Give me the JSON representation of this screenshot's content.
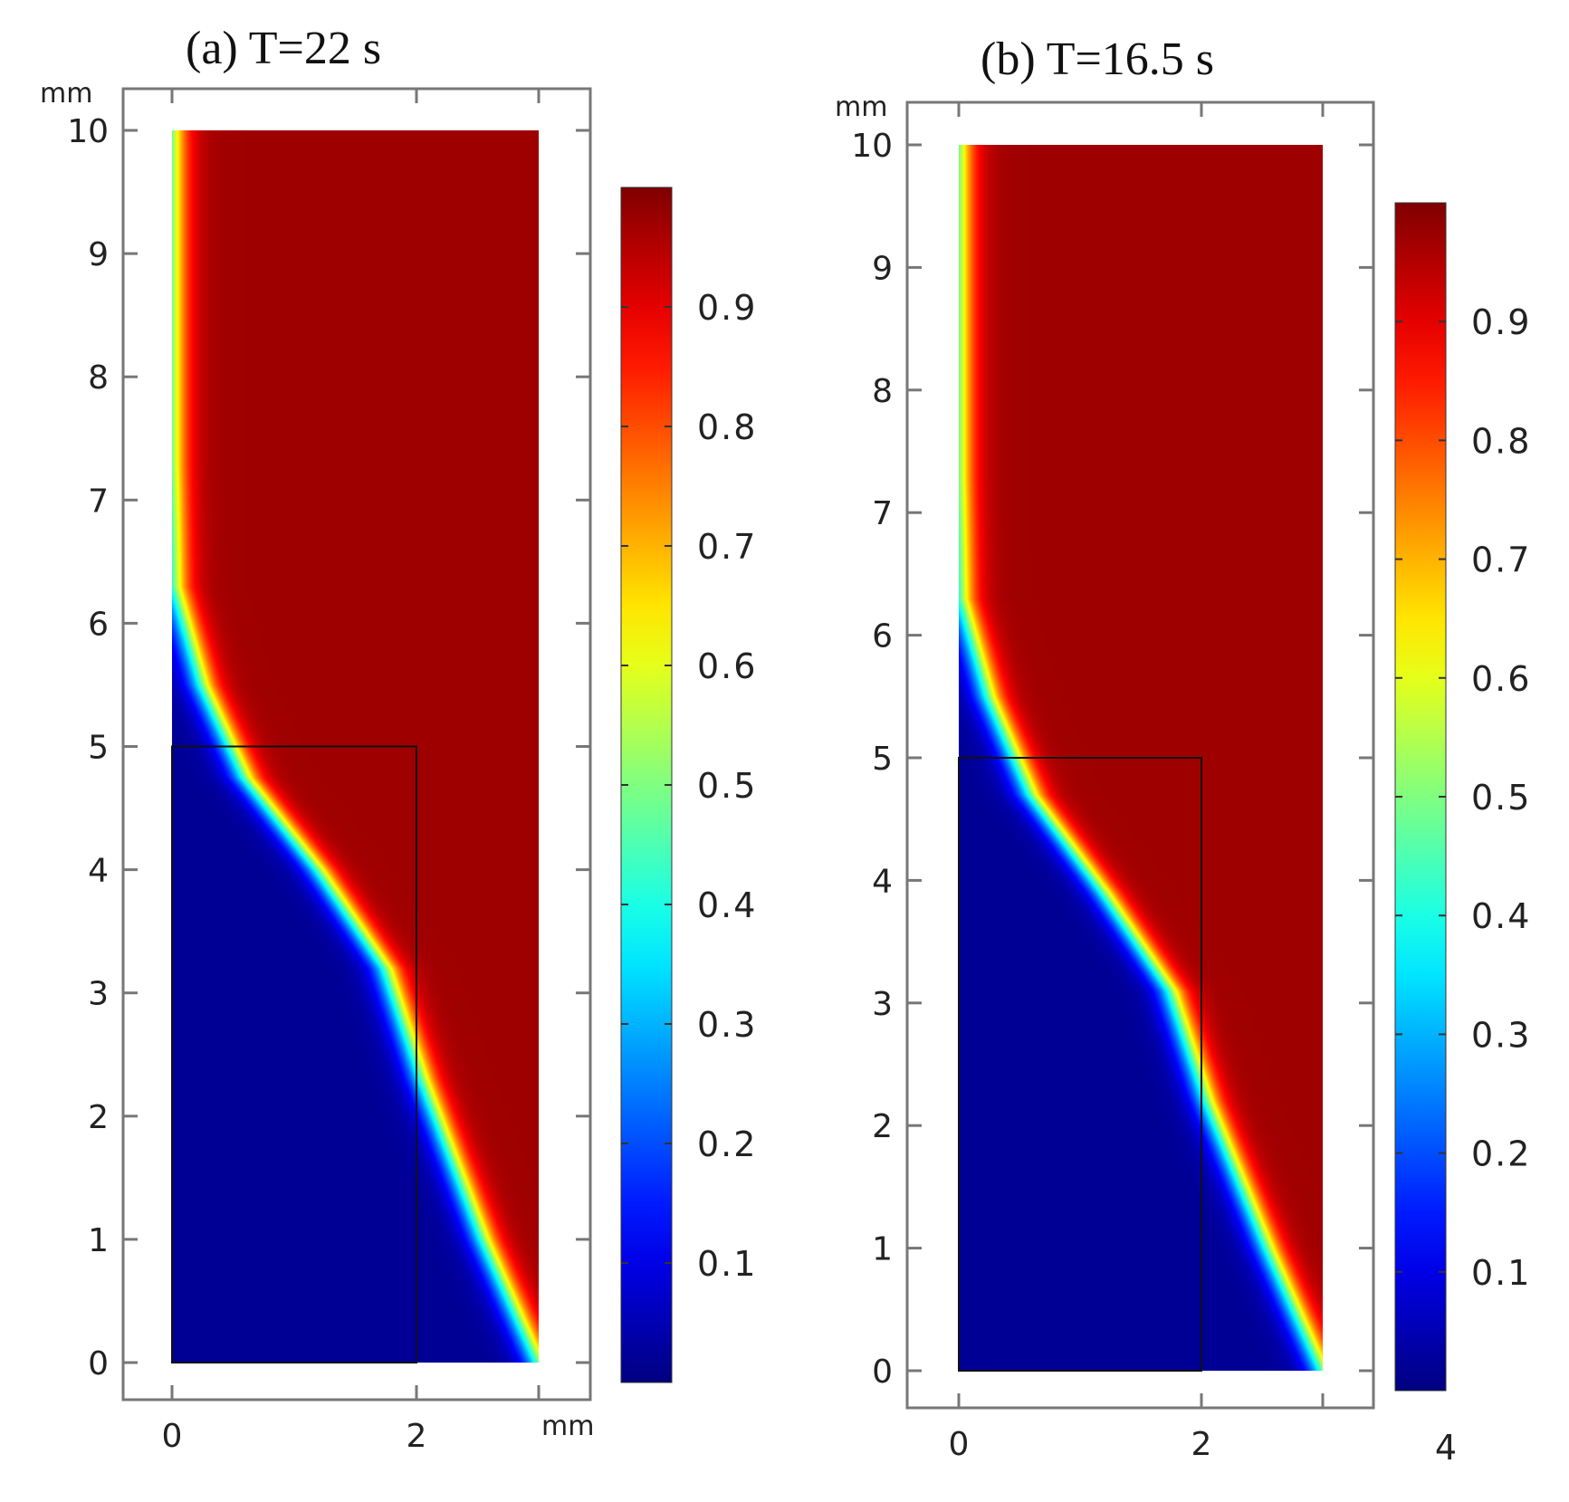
{
  "chart_data": [
    {
      "type": "heatmap",
      "panel": "a",
      "title": "(a)  T=22 s",
      "x_unit": "mm",
      "y_unit": "mm",
      "xlim": [
        -0.4,
        3.4
      ],
      "ylim": [
        -0.35,
        10.35
      ],
      "domain_x": [
        0,
        3
      ],
      "domain_y": [
        0,
        10
      ],
      "x_ticks": [
        "0",
        "2"
      ],
      "x_tick_values": [
        0,
        2
      ],
      "y_ticks": [
        "0",
        "1",
        "2",
        "3",
        "4",
        "5",
        "6",
        "7",
        "8",
        "9",
        "10"
      ],
      "y_tick_values": [
        0,
        1,
        2,
        3,
        4,
        5,
        6,
        7,
        8,
        9,
        10
      ],
      "colorbar": {
        "colormap": "jet",
        "range": [
          0,
          1
        ],
        "tick_labels": [
          "0.1",
          "0.2",
          "0.3",
          "0.4",
          "0.5",
          "0.6",
          "0.7",
          "0.8",
          "0.9"
        ],
        "tick_values": [
          0.1,
          0.2,
          0.3,
          0.4,
          0.5,
          0.6,
          0.7,
          0.8,
          0.9
        ],
        "bottom_label": ""
      },
      "inner_boundary": {
        "x": [
          0,
          2
        ],
        "y": [
          0,
          5
        ]
      },
      "front_curve": {
        "x": [
          0,
          0.02,
          0.25,
          0.6,
          1.2,
          1.75,
          2.05,
          2.55,
          3.0
        ],
        "y": [
          7.3,
          6.3,
          5.5,
          4.75,
          4.0,
          3.2,
          2.3,
          1.0,
          0
        ]
      },
      "front_width": 0.18
    },
    {
      "type": "heatmap",
      "panel": "b",
      "title": "(b) T=16.5 s",
      "x_unit": "",
      "y_unit": "mm",
      "xlim": [
        -0.4,
        3.4
      ],
      "ylim": [
        -0.35,
        10.35
      ],
      "domain_x": [
        0,
        3
      ],
      "domain_y": [
        0,
        10
      ],
      "x_ticks": [
        "0",
        "2"
      ],
      "x_tick_values": [
        0,
        2
      ],
      "y_ticks": [
        "0",
        "1",
        "2",
        "3",
        "4",
        "5",
        "6",
        "7",
        "8",
        "9",
        "10"
      ],
      "y_tick_values": [
        0,
        1,
        2,
        3,
        4,
        5,
        6,
        7,
        8,
        9,
        10
      ],
      "colorbar": {
        "colormap": "jet",
        "range": [
          0,
          1
        ],
        "tick_labels": [
          "0.1",
          "0.2",
          "0.3",
          "0.4",
          "0.5",
          "0.6",
          "0.7",
          "0.8",
          "0.9"
        ],
        "tick_values": [
          0.1,
          0.2,
          0.3,
          0.4,
          0.5,
          0.6,
          0.7,
          0.8,
          0.9
        ],
        "bottom_label": "4"
      },
      "inner_boundary": {
        "x": [
          0,
          2
        ],
        "y": [
          0,
          5
        ]
      },
      "front_curve": {
        "x": [
          0,
          0.02,
          0.25,
          0.6,
          1.2,
          1.75,
          2.05,
          2.55,
          3.0
        ],
        "y": [
          7.3,
          6.3,
          5.5,
          4.7,
          3.9,
          3.1,
          2.2,
          1.0,
          0
        ]
      },
      "front_width": 0.18
    }
  ]
}
